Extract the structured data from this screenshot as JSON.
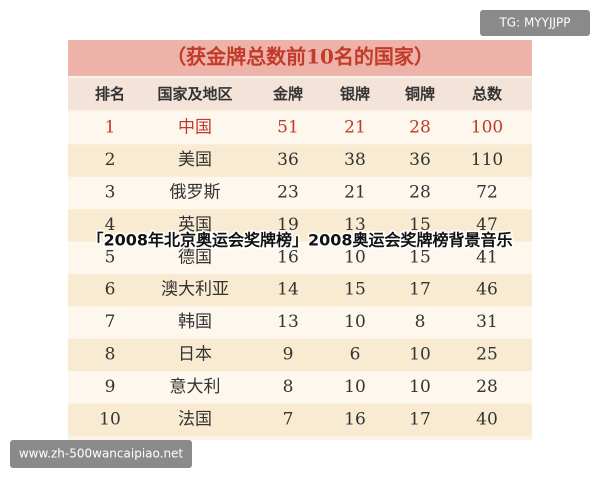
{
  "banner": {
    "title": "（获金牌总数前10名的国家）"
  },
  "table": {
    "header": [
      "排名",
      "国家及地区",
      "金牌",
      "银牌",
      "铜牌",
      "总数"
    ],
    "rows": [
      [
        1,
        "中国",
        51,
        21,
        28,
        100
      ],
      [
        2,
        "美国",
        36,
        38,
        36,
        110
      ],
      [
        3,
        "俄罗斯",
        23,
        21,
        28,
        72
      ],
      [
        4,
        "英国",
        19,
        13,
        15,
        47
      ],
      [
        5,
        "德国",
        16,
        10,
        15,
        41
      ],
      [
        6,
        "澳大利亚",
        14,
        15,
        17,
        46
      ],
      [
        7,
        "韩国",
        13,
        10,
        8,
        31
      ],
      [
        8,
        "日本",
        9,
        6,
        10,
        25
      ],
      [
        9,
        "意大利",
        8,
        10,
        10,
        28
      ],
      [
        10,
        "法国",
        7,
        16,
        17,
        40
      ]
    ]
  },
  "caption": "「2008年北京奥运会奖牌榜」2008奥运会奖牌榜背景音乐",
  "badges": {
    "top_right": "TG: MYYJJPP",
    "bottom_left": "www.zh-500wancaipiao.net"
  }
}
